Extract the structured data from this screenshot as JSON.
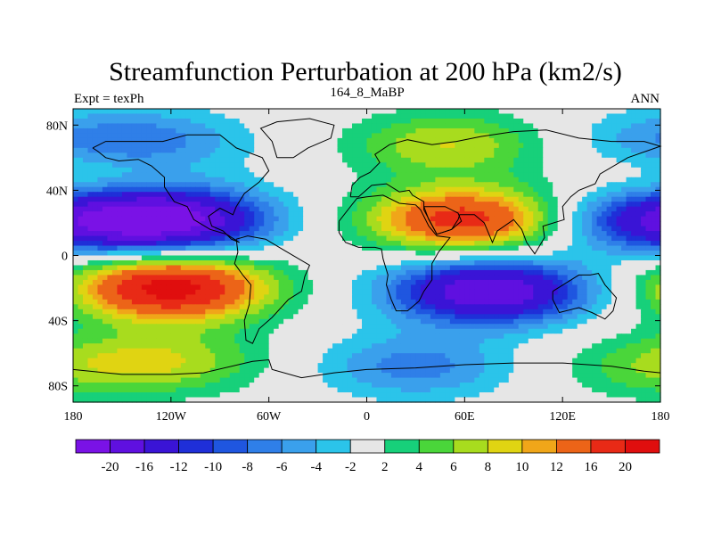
{
  "chart_data": {
    "type": "heatmap",
    "title": "Streamfunction Perturbation at 200 hPa (km2/s)",
    "subtitle_left": "Expt = texPh",
    "subtitle_center": "164_8_MaBP",
    "subtitle_right": "ANN",
    "xlim": [
      -180,
      180
    ],
    "ylim": [
      -90,
      90
    ],
    "x_ticks": [
      {
        "value": -180,
        "label": "180"
      },
      {
        "value": -120,
        "label": "120W"
      },
      {
        "value": -60,
        "label": "60W"
      },
      {
        "value": 0,
        "label": "0"
      },
      {
        "value": 60,
        "label": "60E"
      },
      {
        "value": 120,
        "label": "120E"
      },
      {
        "value": 180,
        "label": "180"
      }
    ],
    "y_ticks": [
      {
        "value": 80,
        "label": "80N"
      },
      {
        "value": 40,
        "label": "40N"
      },
      {
        "value": 0,
        "label": "0"
      },
      {
        "value": -40,
        "label": "40S"
      },
      {
        "value": -80,
        "label": "80S"
      }
    ],
    "colorbar": {
      "labels": [
        "-20",
        "-16",
        "-12",
        "-10",
        "-8",
        "-6",
        "-4",
        "-2",
        "2",
        "4",
        "6",
        "8",
        "10",
        "12",
        "16",
        "20"
      ],
      "colors": [
        "#7a12e6",
        "#5f10e0",
        "#3a14d6",
        "#1f2fd8",
        "#1f56e0",
        "#2f7fe8",
        "#3aa0ec",
        "#2bc4ea",
        "#e6e6e6",
        "#17d07a",
        "#4ad63a",
        "#a8dc1e",
        "#e0d412",
        "#f0a619",
        "#ec6418",
        "#e82a16",
        "#e00e0e"
      ]
    },
    "anomalies": [
      {
        "lon": -120,
        "lat": 22,
        "amp": -21
      },
      {
        "lon": 175,
        "lat": 22,
        "amp": -13
      },
      {
        "lon": -120,
        "lat": -20,
        "amp": 22
      },
      {
        "lon": 60,
        "lat": 22,
        "amp": 18
      },
      {
        "lon": 75,
        "lat": -22,
        "amp": -20
      },
      {
        "lon": 50,
        "lat": 68,
        "amp": 8
      },
      {
        "lon": -130,
        "lat": 70,
        "amp": -6
      },
      {
        "lon": 30,
        "lat": -68,
        "amp": -7
      },
      {
        "lon": -120,
        "lat": -65,
        "amp": 7
      },
      {
        "lon": 175,
        "lat": 70,
        "amp": -4
      },
      {
        "lon": 175,
        "lat": -68,
        "amp": 5
      },
      {
        "lon": -170,
        "lat": 45,
        "amp": 3
      }
    ]
  }
}
